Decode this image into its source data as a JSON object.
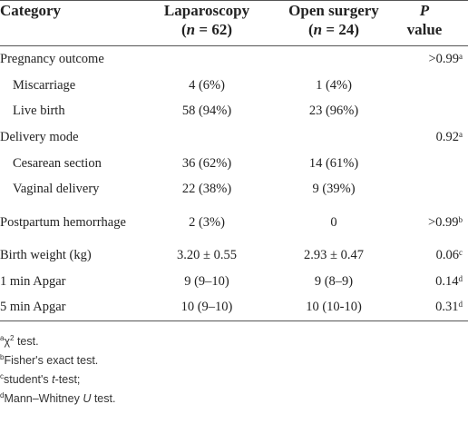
{
  "table": {
    "header": [
      [
        [
          {
            "text": "Category"
          }
        ]
      ],
      [
        [
          {
            "text": "Laparoscopy"
          }
        ],
        [
          {
            "text": "("
          },
          {
            "italic": "n"
          },
          {
            "text": " = 62)"
          }
        ]
      ],
      [
        [
          {
            "text": "Open surgery"
          }
        ],
        [
          {
            "text": "("
          },
          {
            "italic": "n"
          },
          {
            "text": " = 24)"
          }
        ]
      ],
      [
        [
          {
            "italic": "P"
          }
        ],
        [
          {
            "text": "value"
          }
        ]
      ]
    ],
    "rows": [
      {
        "label": "Pregnancy outcome",
        "lap": "",
        "open": "",
        "p": ">0.99",
        "sup": "a",
        "indent": false
      },
      {
        "label": "Miscarriage",
        "lap": "4 (6%)",
        "open": "1 (4%)",
        "p": "",
        "sup": "",
        "indent": true
      },
      {
        "label": "Live birth",
        "lap": "58 (94%)",
        "open": "23 (96%)",
        "p": "",
        "sup": "",
        "indent": true
      },
      {
        "label": "Delivery mode",
        "lap": "",
        "open": "",
        "p": "0.92",
        "sup": "a",
        "indent": false
      },
      {
        "label": "Cesarean section",
        "lap": "36 (62%)",
        "open": "14 (61%)",
        "p": "",
        "sup": "",
        "indent": true
      },
      {
        "label": "Vaginal delivery",
        "lap": "22 (38%)",
        "open": "9 (39%)",
        "p": "",
        "sup": "",
        "indent": true
      },
      {
        "label": "Postpartum hemorrhage",
        "lap": "2 (3%)",
        "open": "0",
        "p": ">0.99",
        "sup": "b",
        "indent": false
      },
      {
        "label": "Birth weight (kg)",
        "lap": "3.20 ± 0.55",
        "open": "2.93 ± 0.47",
        "p": "0.06",
        "sup": "c",
        "indent": false
      },
      {
        "label": "1 min Apgar",
        "lap": "9 (9–10)",
        "open": "9 (8–9)",
        "p": "0.14",
        "sup": "d",
        "indent": false
      },
      {
        "label": "5 min Apgar",
        "lap": "10 (9–10)",
        "open": "10 (10-10)",
        "p": "0.31",
        "sup": "d",
        "indent": false
      }
    ],
    "footnotes": [
      [
        {
          "sup": "a"
        },
        {
          "text": "χ"
        },
        {
          "sup": "2"
        },
        {
          "text": " test."
        }
      ],
      [
        {
          "sup": "b"
        },
        {
          "text": "Fisher's exact test."
        }
      ],
      [
        {
          "sup": "c"
        },
        {
          "text": "student's "
        },
        {
          "italic": "t"
        },
        {
          "text": "-test;"
        }
      ],
      [
        {
          "sup": "d"
        },
        {
          "text": "Mann–Whitney "
        },
        {
          "italic": "U"
        },
        {
          "text": " test."
        }
      ]
    ]
  }
}
